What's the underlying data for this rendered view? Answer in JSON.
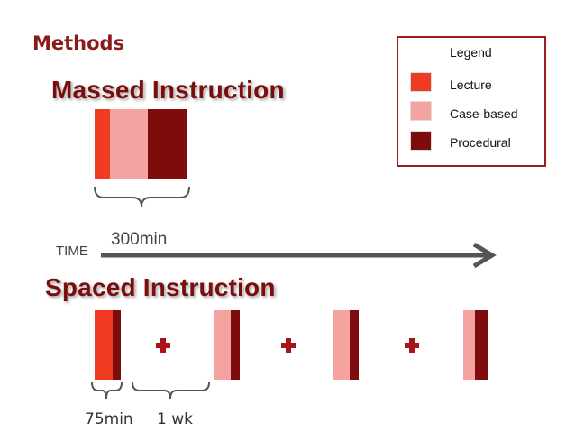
{
  "title": "Methods",
  "massed": {
    "heading": "Massed Instruction"
  },
  "spaced": {
    "heading": "Spaced Instruction"
  },
  "timeline": {
    "label": "TIME",
    "duration": "300min"
  },
  "legend": {
    "title": "Legend",
    "items": [
      {
        "label": "Lecture",
        "color": "#f03a22"
      },
      {
        "label": "Case-based",
        "color": "#f5a3a0"
      },
      {
        "label": "Procedural",
        "color": "#7e0c0c"
      }
    ]
  },
  "spacing": {
    "session_length": "75min",
    "interval": "1 wk"
  },
  "colors": {
    "title": "#8b1a1a",
    "arrow": "#555555",
    "plus": "#a8141a"
  }
}
